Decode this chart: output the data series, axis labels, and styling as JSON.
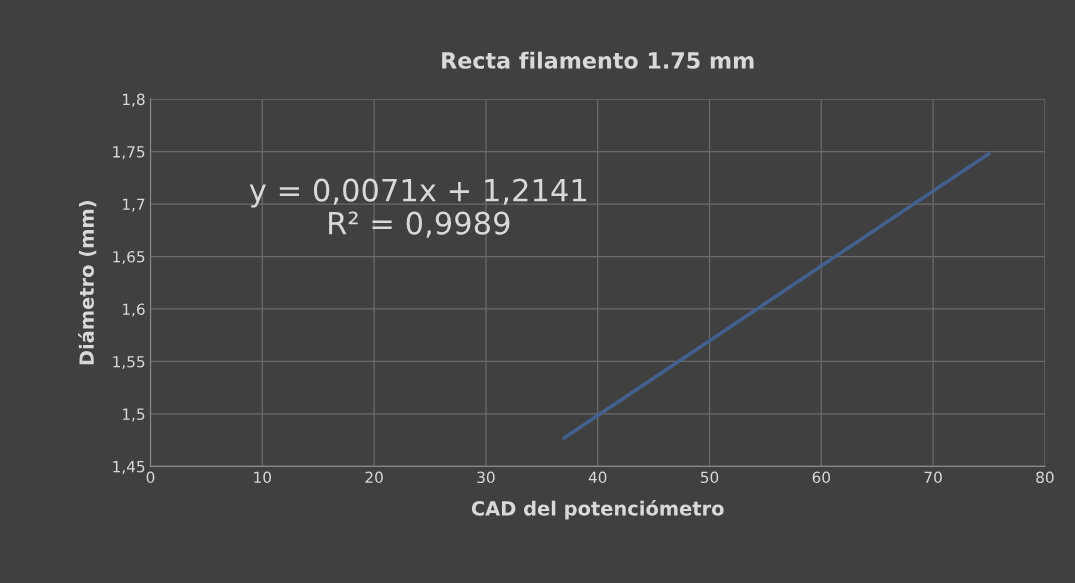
{
  "chart_data": {
    "type": "line",
    "title": "Recta filamento 1.75 mm",
    "xlabel": "CAD del potenciómetro",
    "ylabel": "Diámetro (mm)",
    "x": [
      37,
      75
    ],
    "series": [
      {
        "color": "#44608f",
        "values": [
          1.477,
          1.748
        ]
      }
    ],
    "xlim": [
      0,
      80
    ],
    "xticks": [
      0,
      10,
      20,
      30,
      40,
      50,
      60,
      70,
      80
    ],
    "ylim": [
      1.45,
      1.8
    ],
    "yticks": [
      {
        "value": 1.45,
        "label": "1,45"
      },
      {
        "value": 1.5,
        "label": "1,5"
      },
      {
        "value": 1.55,
        "label": "1,55"
      },
      {
        "value": 1.6,
        "label": "1,6"
      },
      {
        "value": 1.65,
        "label": "1,65"
      },
      {
        "value": 1.7,
        "label": "1,7"
      },
      {
        "value": 1.75,
        "label": "1,75"
      },
      {
        "value": 1.8,
        "label": "1,8"
      }
    ],
    "annotations": [
      "y = 0,0071x + 1,2141\nR² = 0,9989"
    ],
    "grid": true,
    "legend": false,
    "marker": "none",
    "line_style": "solid"
  }
}
